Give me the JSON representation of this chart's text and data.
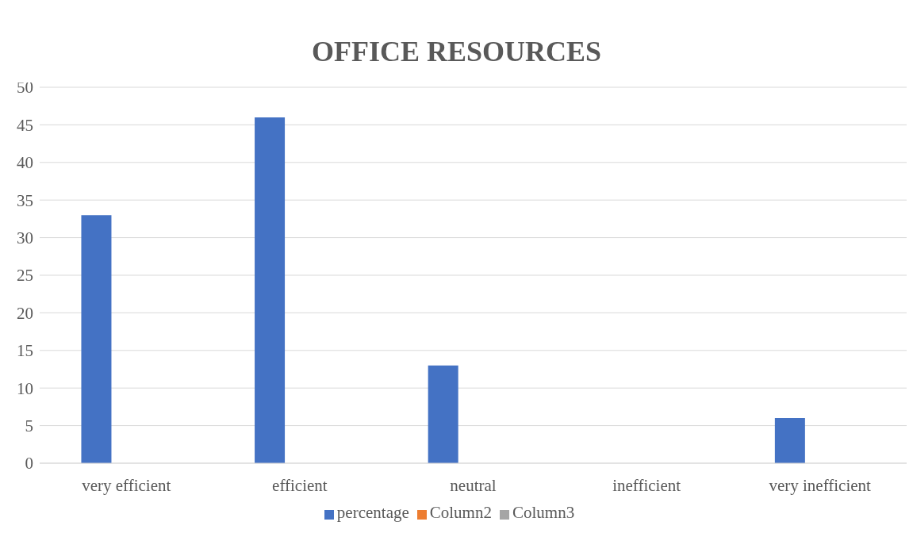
{
  "chart_data": {
    "type": "bar",
    "title": "OFFICE RESOURCES",
    "categories": [
      "very efficient",
      "efficient",
      "neutral",
      "inefficient",
      "very inefficient"
    ],
    "series": [
      {
        "name": "percentage",
        "color": "#4472c4",
        "values": [
          33,
          46,
          13,
          null,
          6
        ]
      },
      {
        "name": "Column2",
        "color": "#ed7d31",
        "values": [
          null,
          null,
          null,
          null,
          null
        ]
      },
      {
        "name": "Column3",
        "color": "#a5a5a5",
        "values": [
          null,
          null,
          null,
          null,
          null
        ]
      }
    ],
    "ylim": [
      0,
      50
    ],
    "yticks": [
      0,
      5,
      10,
      15,
      20,
      25,
      30,
      35,
      40,
      45,
      50
    ],
    "grid": "y",
    "legend": "bottom"
  }
}
